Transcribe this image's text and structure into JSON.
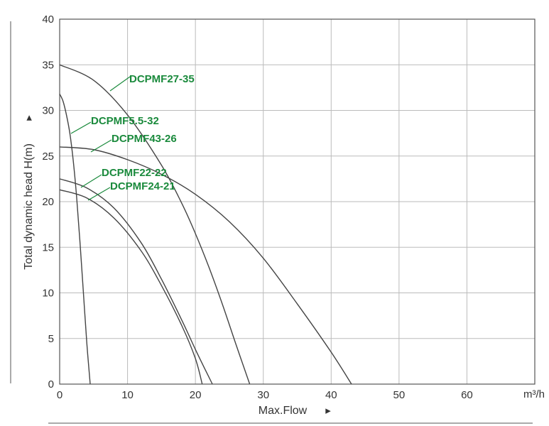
{
  "chart_data": {
    "type": "line",
    "xlabel": "Max.Flow",
    "xlabel_marker": "▸",
    "ylabel": "Total dynamic head H(m)",
    "ylabel_marker": "▸",
    "x_unit": "m³/h",
    "xlim": [
      0,
      70
    ],
    "ylim": [
      0,
      40
    ],
    "x_ticks": [
      0,
      10,
      20,
      30,
      40,
      50,
      60
    ],
    "y_ticks": [
      0,
      5,
      10,
      15,
      20,
      25,
      30,
      35,
      40
    ],
    "grid": true,
    "series": [
      {
        "name": "DCPMF27-35",
        "x": [
          0,
          5,
          10,
          15,
          18,
          20,
          22,
          24,
          26,
          28
        ],
        "y": [
          35,
          33.3,
          29.5,
          24,
          19.8,
          16.5,
          12.8,
          8.7,
          4.3,
          0
        ]
      },
      {
        "name": "DCPMF5.5-32",
        "x": [
          0,
          0.5,
          1,
          1.5,
          2,
          2.5,
          3,
          3.5,
          4,
          4.5
        ],
        "y": [
          31.8,
          31,
          29.5,
          27.5,
          24.5,
          20.5,
          15.5,
          10,
          4.5,
          0
        ]
      },
      {
        "name": "DCPMF43-26",
        "x": [
          0,
          5,
          10,
          15,
          20,
          25,
          30,
          35,
          40,
          43
        ],
        "y": [
          26,
          25.7,
          24.6,
          23,
          20.8,
          17.8,
          13.8,
          8.8,
          3.5,
          0
        ]
      },
      {
        "name": "DCPMF22-22",
        "x": [
          0,
          4,
          8,
          12,
          15,
          18,
          20,
          21.5,
          22.5
        ],
        "y": [
          22.5,
          21.5,
          19.3,
          15.5,
          11.5,
          7,
          3.8,
          1.5,
          0
        ]
      },
      {
        "name": "DCPMF24-21",
        "x": [
          0,
          4,
          8,
          12,
          15,
          18,
          20,
          21
        ],
        "y": [
          21.3,
          20.4,
          18.2,
          14.6,
          10.8,
          6.4,
          2.8,
          0
        ]
      }
    ],
    "label_color": "#1a8a3c",
    "curve_color": "#444444",
    "grid_color": "#bbbbbb"
  }
}
